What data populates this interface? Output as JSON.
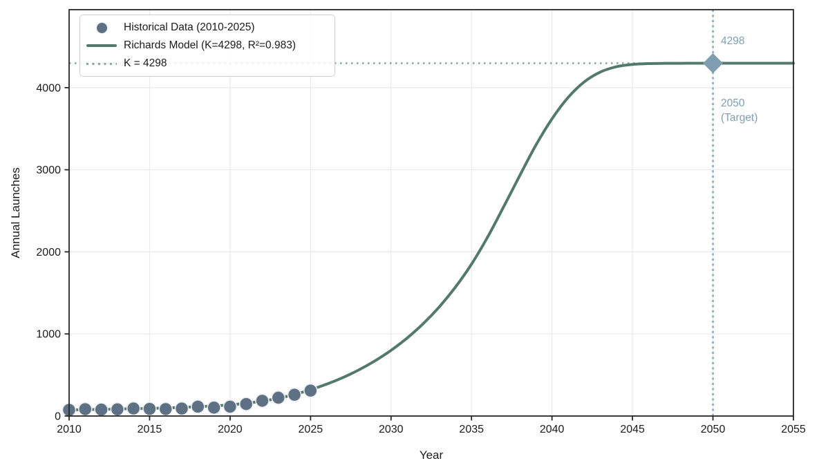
{
  "chart_data": {
    "type": "line",
    "title": "",
    "xlabel": "Year",
    "ylabel": "Annual Launches",
    "xlim": [
      2010,
      2055
    ],
    "ylim": [
      0,
      4950
    ],
    "xticks": [
      2010,
      2015,
      2020,
      2025,
      2030,
      2035,
      2040,
      2045,
      2050,
      2055
    ],
    "yticks": [
      0,
      1000,
      2000,
      3000,
      4000
    ],
    "grid": true,
    "grid_color": "#e9e9e9",
    "frame_color": "#262626",
    "legend_position": "upper-left",
    "series": [
      {
        "name": "Historical Data (2010-2025)",
        "type": "scatter",
        "color": "#5d7084",
        "edge_color": "#e9edf0",
        "x": [
          2010,
          2011,
          2012,
          2013,
          2014,
          2015,
          2016,
          2017,
          2018,
          2019,
          2020,
          2021,
          2022,
          2023,
          2024,
          2025
        ],
        "values": [
          74,
          84,
          78,
          81,
          92,
          87,
          85,
          91,
          114,
          102,
          114,
          146,
          186,
          223,
          259,
          310
        ]
      },
      {
        "name": "Richards Model (K=4298, R²=0.983)",
        "type": "line",
        "color": "#53796d",
        "x": [
          2010,
          2011,
          2012,
          2013,
          2014,
          2015,
          2016,
          2017,
          2018,
          2019,
          2020,
          2021,
          2022,
          2023,
          2024,
          2025,
          2026,
          2027,
          2028,
          2029,
          2030,
          2031,
          2032,
          2033,
          2034,
          2035,
          2036,
          2037,
          2038,
          2039,
          2040,
          2041,
          2042,
          2043,
          2044,
          2045,
          2046,
          2047,
          2048,
          2049,
          2050,
          2051,
          2052,
          2053,
          2054,
          2055
        ],
        "values": [
          75,
          78,
          81,
          85,
          89,
          93,
          98,
          105,
          113,
          123,
          136,
          155,
          181,
          217,
          263,
          320,
          388,
          468,
          562,
          672,
          800,
          950,
          1125,
          1330,
          1570,
          1850,
          2180,
          2550,
          2930,
          3300,
          3620,
          3880,
          4070,
          4190,
          4255,
          4283,
          4293,
          4296,
          4297,
          4298,
          4298,
          4298,
          4298,
          4298,
          4298,
          4298
        ]
      },
      {
        "name": "K = 4298",
        "type": "hline",
        "style": "dotted",
        "color": "#8aa79a",
        "value": 4298
      }
    ],
    "vlines": [
      {
        "x": 2050,
        "style": "dotted",
        "color": "#8fa8b8"
      }
    ],
    "markers": [
      {
        "shape": "diamond",
        "x": 2050,
        "y": 4298,
        "color": "#7e9eb0"
      }
    ],
    "annotations": [
      {
        "text": "4298",
        "x": 2050.5,
        "y": 4560,
        "color": "#7e9eb0"
      },
      {
        "text": "2050\n(Target)",
        "x": 2050.5,
        "y": 3800,
        "color": "#7e9eb0"
      }
    ]
  }
}
